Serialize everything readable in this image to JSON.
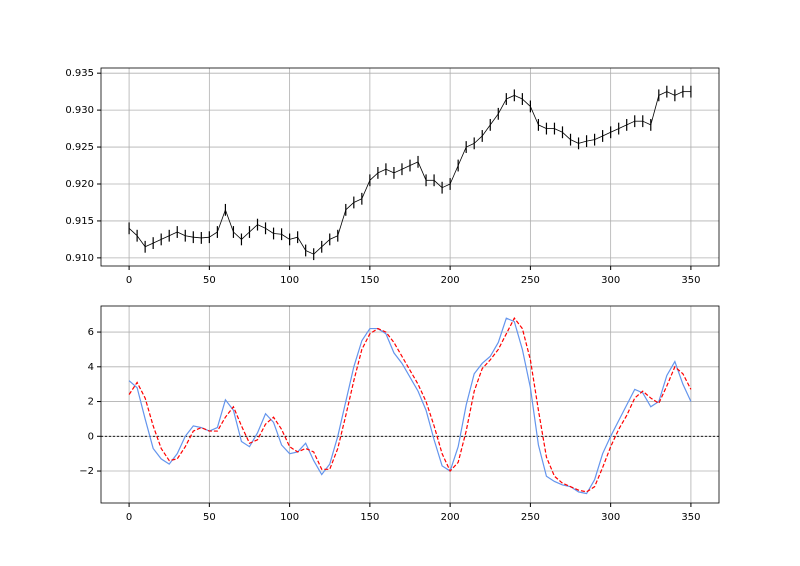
{
  "chart_data": [
    {
      "type": "range",
      "color": "#000000",
      "grid": true,
      "x": [
        0,
        5,
        10,
        15,
        20,
        25,
        30,
        35,
        40,
        45,
        50,
        55,
        60,
        65,
        70,
        75,
        80,
        85,
        90,
        95,
        100,
        105,
        110,
        115,
        120,
        125,
        130,
        135,
        140,
        145,
        150,
        155,
        160,
        165,
        170,
        175,
        180,
        185,
        190,
        195,
        200,
        205,
        210,
        215,
        220,
        225,
        230,
        235,
        240,
        245,
        250,
        255,
        260,
        265,
        270,
        275,
        280,
        285,
        290,
        295,
        300,
        305,
        310,
        315,
        320,
        325,
        330,
        335,
        340,
        345,
        350
      ],
      "low": [
        0.9132,
        0.9122,
        0.9107,
        0.9112,
        0.9117,
        0.9122,
        0.9127,
        0.9122,
        0.912,
        0.9119,
        0.912,
        0.9127,
        0.9157,
        0.9127,
        0.9117,
        0.9127,
        0.9137,
        0.9132,
        0.9125,
        0.9124,
        0.9117,
        0.912,
        0.9102,
        0.9097,
        0.9107,
        0.9117,
        0.9122,
        0.9157,
        0.9167,
        0.9172,
        0.9197,
        0.9207,
        0.9212,
        0.9207,
        0.9212,
        0.9217,
        0.9222,
        0.9197,
        0.9197,
        0.9187,
        0.9192,
        0.9217,
        0.9242,
        0.9247,
        0.9257,
        0.9272,
        0.9287,
        0.9307,
        0.9312,
        0.9307,
        0.9297,
        0.9272,
        0.9267,
        0.9267,
        0.9262,
        0.9252,
        0.9247,
        0.925,
        0.9252,
        0.9257,
        0.9262,
        0.9267,
        0.9272,
        0.9277,
        0.9277,
        0.9272,
        0.9312,
        0.9317,
        0.9312,
        0.9317,
        0.9317
      ],
      "high": [
        0.9148,
        0.9138,
        0.9123,
        0.9128,
        0.9133,
        0.9138,
        0.9143,
        0.9138,
        0.9136,
        0.9135,
        0.9136,
        0.9143,
        0.9173,
        0.9143,
        0.9133,
        0.9143,
        0.9153,
        0.9148,
        0.9141,
        0.914,
        0.9133,
        0.9136,
        0.9118,
        0.9113,
        0.9123,
        0.9133,
        0.9138,
        0.9173,
        0.9183,
        0.9188,
        0.9213,
        0.9223,
        0.9228,
        0.9223,
        0.9228,
        0.9233,
        0.9238,
        0.9213,
        0.9213,
        0.9203,
        0.9208,
        0.9233,
        0.9258,
        0.9263,
        0.9273,
        0.9288,
        0.9303,
        0.9323,
        0.9328,
        0.9323,
        0.9313,
        0.9288,
        0.9283,
        0.9283,
        0.9278,
        0.9268,
        0.9263,
        0.9266,
        0.9268,
        0.9273,
        0.9278,
        0.9283,
        0.9288,
        0.9293,
        0.9293,
        0.9288,
        0.9328,
        0.9333,
        0.9328,
        0.9333,
        0.9333
      ],
      "xlim": [
        -17.5,
        367.5
      ],
      "xticks": [
        0,
        50,
        100,
        150,
        200,
        250,
        300,
        350
      ],
      "ylim": [
        0.9089,
        0.9357
      ],
      "yticks": [
        {
          "value": 0.91,
          "label": "0.910"
        },
        0.915,
        {
          "value": 0.92,
          "label": "0.920"
        },
        0.925,
        {
          "value": 0.93,
          "label": "0.930"
        },
        0.935
      ]
    },
    {
      "type": "line",
      "grid": true,
      "hline": 0,
      "x": [
        0,
        5,
        10,
        15,
        20,
        25,
        30,
        35,
        40,
        45,
        50,
        55,
        60,
        65,
        70,
        75,
        80,
        85,
        90,
        95,
        100,
        105,
        110,
        115,
        120,
        125,
        130,
        135,
        140,
        145,
        150,
        155,
        160,
        165,
        170,
        175,
        180,
        185,
        190,
        195,
        200,
        205,
        210,
        215,
        220,
        225,
        230,
        235,
        240,
        245,
        250,
        255,
        260,
        265,
        270,
        275,
        280,
        285,
        290,
        295,
        300,
        305,
        310,
        315,
        320,
        325,
        330,
        335,
        340,
        345,
        350
      ],
      "series": [
        {
          "color": "#6495ed",
          "style": "solid",
          "values": [
            3.2,
            2.8,
            1.0,
            -0.7,
            -1.3,
            -1.6,
            -1.0,
            0.0,
            0.6,
            0.5,
            0.3,
            0.5,
            2.1,
            1.5,
            -0.3,
            -0.6,
            0.2,
            1.3,
            0.8,
            -0.5,
            -1.0,
            -0.9,
            -0.4,
            -1.4,
            -2.2,
            -1.6,
            0.0,
            2.0,
            4.0,
            5.5,
            6.2,
            6.2,
            5.9,
            4.8,
            4.2,
            3.4,
            2.6,
            1.5,
            -0.2,
            -1.7,
            -2.0,
            -0.6,
            1.8,
            3.6,
            4.2,
            4.6,
            5.4,
            6.8,
            6.6,
            5.0,
            2.8,
            -0.5,
            -2.3,
            -2.6,
            -2.8,
            -2.9,
            -3.2,
            -3.3,
            -2.5,
            -1.0,
            0.0,
            0.9,
            1.8,
            2.7,
            2.5,
            1.7,
            2.0,
            3.5,
            4.3,
            3.0,
            2.0
          ]
        },
        {
          "color": "#ff0000",
          "style": "dashed",
          "values": [
            2.4,
            3.1,
            2.2,
            0.6,
            -0.7,
            -1.4,
            -1.3,
            -0.6,
            0.3,
            0.5,
            0.3,
            0.3,
            1.1,
            1.7,
            0.6,
            -0.4,
            -0.2,
            0.7,
            1.1,
            0.4,
            -0.6,
            -0.9,
            -0.7,
            -0.9,
            -1.9,
            -1.9,
            -0.7,
            1.2,
            3.2,
            5.0,
            5.9,
            6.2,
            6.0,
            5.4,
            4.6,
            3.8,
            3.0,
            2.0,
            0.6,
            -1.0,
            -2.0,
            -1.5,
            0.3,
            2.6,
            3.9,
            4.4,
            5.0,
            5.9,
            6.8,
            6.2,
            4.4,
            1.5,
            -1.2,
            -2.3,
            -2.7,
            -2.9,
            -3.1,
            -3.2,
            -2.9,
            -1.8,
            -0.6,
            0.4,
            1.2,
            2.2,
            2.6,
            2.2,
            1.9,
            2.9,
            4.0,
            3.6,
            2.7
          ]
        }
      ],
      "xlim": [
        -17.5,
        367.5
      ],
      "xticks": [
        0,
        50,
        100,
        150,
        200,
        250,
        300,
        350
      ],
      "ylim": [
        -3.84,
        7.5
      ],
      "yticks": [
        {
          "value": -2,
          "label": "−2"
        },
        0,
        2,
        4,
        6
      ]
    }
  ]
}
